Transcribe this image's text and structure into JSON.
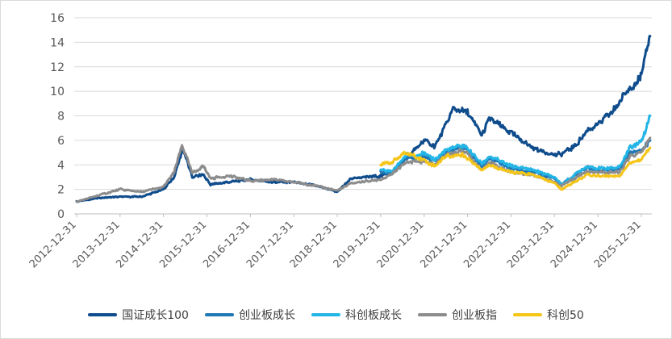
{
  "chart_data": {
    "type": "line",
    "title": "",
    "xlabel": "",
    "ylabel": "",
    "ylim": [
      0,
      16
    ],
    "yticks": [
      "0",
      "2",
      "4",
      "6",
      "8",
      "10",
      "12",
      "14",
      "16"
    ],
    "x_tick_labels": [
      "2012-12-31",
      "2013-12-31",
      "2014-12-31",
      "2015-12-31",
      "2016-12-31",
      "2017-12-31",
      "2018-12-31",
      "2019-12-31",
      "2020-12-31",
      "2021-12-31",
      "2022-12-31",
      "2023-12-31",
      "2024-12-31",
      "2025-12-31"
    ],
    "grid": "horizontal",
    "legend_position": "bottom",
    "series": [
      {
        "name": "国证成长100",
        "color": "#0f4c8c",
        "points": [
          [
            "2012-12-31",
            1.0
          ],
          [
            "2013-06-30",
            1.3
          ],
          [
            "2013-12-31",
            1.4
          ],
          [
            "2014-06-30",
            1.4
          ],
          [
            "2014-12-31",
            2.0
          ],
          [
            "2015-03-31",
            3.0
          ],
          [
            "2015-06-12",
            5.3
          ],
          [
            "2015-08-31",
            3.0
          ],
          [
            "2015-11-30",
            3.2
          ],
          [
            "2016-01-31",
            2.4
          ],
          [
            "2016-06-30",
            2.6
          ],
          [
            "2016-12-31",
            2.8
          ],
          [
            "2017-06-30",
            2.6
          ],
          [
            "2017-12-31",
            2.6
          ],
          [
            "2018-06-30",
            2.3
          ],
          [
            "2018-12-31",
            1.8
          ],
          [
            "2019-04-30",
            2.9
          ],
          [
            "2019-12-31",
            3.1
          ],
          [
            "2020-03-31",
            3.4
          ],
          [
            "2020-07-31",
            4.5
          ],
          [
            "2020-12-31",
            6.0
          ],
          [
            "2021-03-31",
            5.5
          ],
          [
            "2021-06-30",
            7.2
          ],
          [
            "2021-08-31",
            8.6
          ],
          [
            "2021-12-31",
            8.3
          ],
          [
            "2022-04-30",
            6.4
          ],
          [
            "2022-06-30",
            7.8
          ],
          [
            "2022-12-31",
            6.6
          ],
          [
            "2023-06-30",
            5.4
          ],
          [
            "2023-12-31",
            4.8
          ],
          [
            "2024-02-29",
            4.9
          ],
          [
            "2024-06-30",
            5.6
          ],
          [
            "2024-09-30",
            6.8
          ],
          [
            "2024-12-31",
            7.3
          ],
          [
            "2025-04-30",
            8.3
          ],
          [
            "2025-08-31",
            10.0
          ],
          [
            "2025-12-31",
            11.2
          ],
          [
            "2026-03-15",
            14.5
          ]
        ]
      },
      {
        "name": "创业板成长",
        "color": "#1f77b4",
        "points": [
          [
            "2019-12-31",
            3.4
          ],
          [
            "2020-03-31",
            3.3
          ],
          [
            "2020-07-31",
            4.5
          ],
          [
            "2020-12-31",
            4.7
          ],
          [
            "2021-03-31",
            4.3
          ],
          [
            "2021-06-30",
            5.0
          ],
          [
            "2021-11-30",
            5.5
          ],
          [
            "2022-04-30",
            3.9
          ],
          [
            "2022-06-30",
            4.5
          ],
          [
            "2022-12-31",
            3.7
          ],
          [
            "2023-06-30",
            3.4
          ],
          [
            "2023-12-31",
            2.9
          ],
          [
            "2024-02-29",
            2.4
          ],
          [
            "2024-09-30",
            3.8
          ],
          [
            "2024-12-31",
            3.5
          ],
          [
            "2025-06-30",
            3.6
          ],
          [
            "2025-09-30",
            5.0
          ],
          [
            "2025-12-31",
            5.2
          ],
          [
            "2026-03-15",
            6.0
          ]
        ]
      },
      {
        "name": "科创板成长",
        "color": "#22b5e6",
        "points": [
          [
            "2019-12-31",
            3.6
          ],
          [
            "2020-03-31",
            3.4
          ],
          [
            "2020-07-31",
            4.8
          ],
          [
            "2020-12-31",
            4.9
          ],
          [
            "2021-03-31",
            4.4
          ],
          [
            "2021-06-30",
            5.2
          ],
          [
            "2021-11-30",
            5.6
          ],
          [
            "2022-04-30",
            4.1
          ],
          [
            "2022-06-30",
            4.7
          ],
          [
            "2022-12-31",
            3.9
          ],
          [
            "2023-06-30",
            3.6
          ],
          [
            "2023-12-31",
            3.0
          ],
          [
            "2024-02-29",
            2.4
          ],
          [
            "2024-09-30",
            3.9
          ],
          [
            "2024-12-31",
            3.7
          ],
          [
            "2025-06-30",
            3.8
          ],
          [
            "2025-09-30",
            5.5
          ],
          [
            "2025-12-31",
            5.9
          ],
          [
            "2026-03-15",
            8.0
          ]
        ]
      },
      {
        "name": "创业板指",
        "color": "#8c8c8c",
        "points": [
          [
            "2012-12-31",
            1.0
          ],
          [
            "2013-06-30",
            1.5
          ],
          [
            "2013-12-31",
            2.0
          ],
          [
            "2014-06-30",
            1.8
          ],
          [
            "2014-12-31",
            2.2
          ],
          [
            "2015-03-31",
            3.4
          ],
          [
            "2015-06-05",
            5.6
          ],
          [
            "2015-08-31",
            3.3
          ],
          [
            "2015-11-30",
            3.9
          ],
          [
            "2016-01-31",
            2.9
          ],
          [
            "2016-06-30",
            3.1
          ],
          [
            "2016-12-31",
            2.7
          ],
          [
            "2017-06-30",
            2.8
          ],
          [
            "2017-12-31",
            2.6
          ],
          [
            "2018-06-30",
            2.3
          ],
          [
            "2018-12-31",
            1.9
          ],
          [
            "2019-04-30",
            2.5
          ],
          [
            "2019-12-31",
            2.8
          ],
          [
            "2020-03-31",
            3.2
          ],
          [
            "2020-07-31",
            4.2
          ],
          [
            "2020-12-31",
            4.3
          ],
          [
            "2021-03-31",
            4.0
          ],
          [
            "2021-06-30",
            4.8
          ],
          [
            "2021-11-30",
            5.2
          ],
          [
            "2022-04-30",
            3.6
          ],
          [
            "2022-06-30",
            4.2
          ],
          [
            "2022-12-31",
            3.4
          ],
          [
            "2023-06-30",
            3.2
          ],
          [
            "2023-12-31",
            2.6
          ],
          [
            "2024-02-29",
            2.3
          ],
          [
            "2024-09-30",
            3.5
          ],
          [
            "2024-12-31",
            3.4
          ],
          [
            "2025-06-30",
            3.4
          ],
          [
            "2025-09-30",
            4.7
          ],
          [
            "2025-12-31",
            5.0
          ],
          [
            "2026-03-15",
            6.2
          ]
        ]
      },
      {
        "name": "科创50",
        "color": "#f5c518",
        "points": [
          [
            "2019-12-31",
            4.0
          ],
          [
            "2020-03-31",
            4.2
          ],
          [
            "2020-07-31",
            5.0
          ],
          [
            "2020-12-31",
            4.4
          ],
          [
            "2021-03-31",
            3.9
          ],
          [
            "2021-06-30",
            4.7
          ],
          [
            "2021-11-30",
            4.8
          ],
          [
            "2022-04-30",
            3.6
          ],
          [
            "2022-06-30",
            4.0
          ],
          [
            "2022-12-31",
            3.4
          ],
          [
            "2023-06-30",
            3.2
          ],
          [
            "2023-12-31",
            2.5
          ],
          [
            "2024-02-29",
            2.0
          ],
          [
            "2024-09-30",
            3.2
          ],
          [
            "2024-12-31",
            3.1
          ],
          [
            "2025-06-30",
            3.1
          ],
          [
            "2025-09-30",
            4.2
          ],
          [
            "2025-12-31",
            4.4
          ],
          [
            "2026-03-15",
            5.4
          ]
        ]
      }
    ]
  }
}
